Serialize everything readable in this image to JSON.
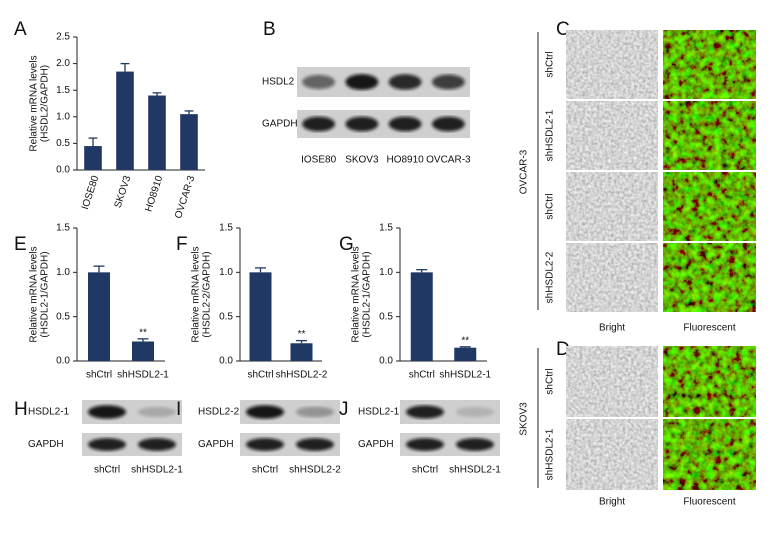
{
  "chart_data": [
    {
      "type": "bar",
      "panel": "A",
      "ylabel": [
        "Relative mRNA levels",
        "(HSDL2/GAPDH)"
      ],
      "categories": [
        "IOSE80",
        "SKOV3",
        "HO8910",
        "OVCAR-3"
      ],
      "values": [
        0.45,
        1.85,
        1.4,
        1.05
      ],
      "errors": [
        0.15,
        0.15,
        0.05,
        0.06
      ],
      "color": "#1f3864",
      "ylim": [
        0,
        2.5
      ],
      "yticks": [
        {
          "value": 0,
          "label": "0.0"
        },
        0.5,
        {
          "value": 1,
          "label": "1.0"
        },
        1.5,
        {
          "value": 2,
          "label": "2.0"
        },
        2.5
      ]
    },
    {
      "type": "bar",
      "panel": "E",
      "ylabel": [
        "Relative mRNA levels",
        "(HSDL2-1/GAPDH)"
      ],
      "categories": [
        "shCtrl",
        "shHSDL2-1"
      ],
      "values": [
        1.0,
        0.22
      ],
      "errors": [
        0.07,
        0.03
      ],
      "significance": [
        null,
        "**"
      ],
      "color": "#1f3864",
      "ylim": [
        0,
        1.5
      ],
      "yticks": [
        {
          "value": 0,
          "label": "0.0"
        },
        0.5,
        {
          "value": 1,
          "label": "1.0"
        },
        1.5
      ]
    },
    {
      "type": "bar",
      "panel": "F",
      "ylabel": [
        "Relative mRNA levels",
        "(HSDL2-2/GAPDH)"
      ],
      "categories": [
        "shCtrl",
        "shHSDL2-2"
      ],
      "values": [
        1.0,
        0.2
      ],
      "errors": [
        0.05,
        0.03
      ],
      "significance": [
        null,
        "**"
      ],
      "color": "#1f3864",
      "ylim": [
        0,
        1.5
      ],
      "yticks": [
        {
          "value": 0,
          "label": "0.0"
        },
        0.5,
        {
          "value": 1,
          "label": "1.0"
        },
        1.5
      ]
    },
    {
      "type": "bar",
      "panel": "G",
      "ylabel": [
        "Relative mRNA levels",
        "(HSDL2-1/GAPDH)"
      ],
      "categories": [
        "shCtrl",
        "shHSDL2-1"
      ],
      "values": [
        1.0,
        0.15
      ],
      "errors": [
        0.03,
        0.01
      ],
      "significance": [
        null,
        "**"
      ],
      "color": "#1f3864",
      "ylim": [
        0,
        1.5
      ],
      "yticks": [
        {
          "value": 0,
          "label": "0.0"
        },
        0.5,
        {
          "value": 1,
          "label": "1.0"
        },
        1.5
      ]
    }
  ],
  "blots": [
    {
      "panel": "B",
      "rows": [
        "HSDL2",
        "GAPDH"
      ],
      "lanes": [
        "IOSE80",
        "SKOV3",
        "HO8910",
        "OVCAR-3"
      ]
    },
    {
      "panel": "H",
      "rows": [
        "HSDL2-1",
        "GAPDH"
      ],
      "lanes": [
        "shCtrl",
        "shHSDL2-1"
      ]
    },
    {
      "panel": "I",
      "rows": [
        "HSDL2-2",
        "GAPDH"
      ],
      "lanes": [
        "shCtrl",
        "shHSDL2-2"
      ]
    },
    {
      "panel": "J",
      "rows": [
        "HSDL2-1",
        "GAPDH"
      ],
      "lanes": [
        "shCtrl",
        "shHSDL2-1"
      ]
    }
  ],
  "imaging": [
    {
      "panel": "C",
      "cell_line": "OVCAR-3",
      "rows": [
        "shCtrl",
        "shHSDL2-1",
        "shCtrl",
        "shHSDL2-2"
      ],
      "columns": [
        "Bright",
        "Fluorescent"
      ]
    },
    {
      "panel": "D",
      "cell_line": "SKOV3",
      "rows": [
        "shCtrl",
        "shHSDL2-1"
      ],
      "columns": [
        "Bright",
        "Fluorescent"
      ]
    }
  ]
}
